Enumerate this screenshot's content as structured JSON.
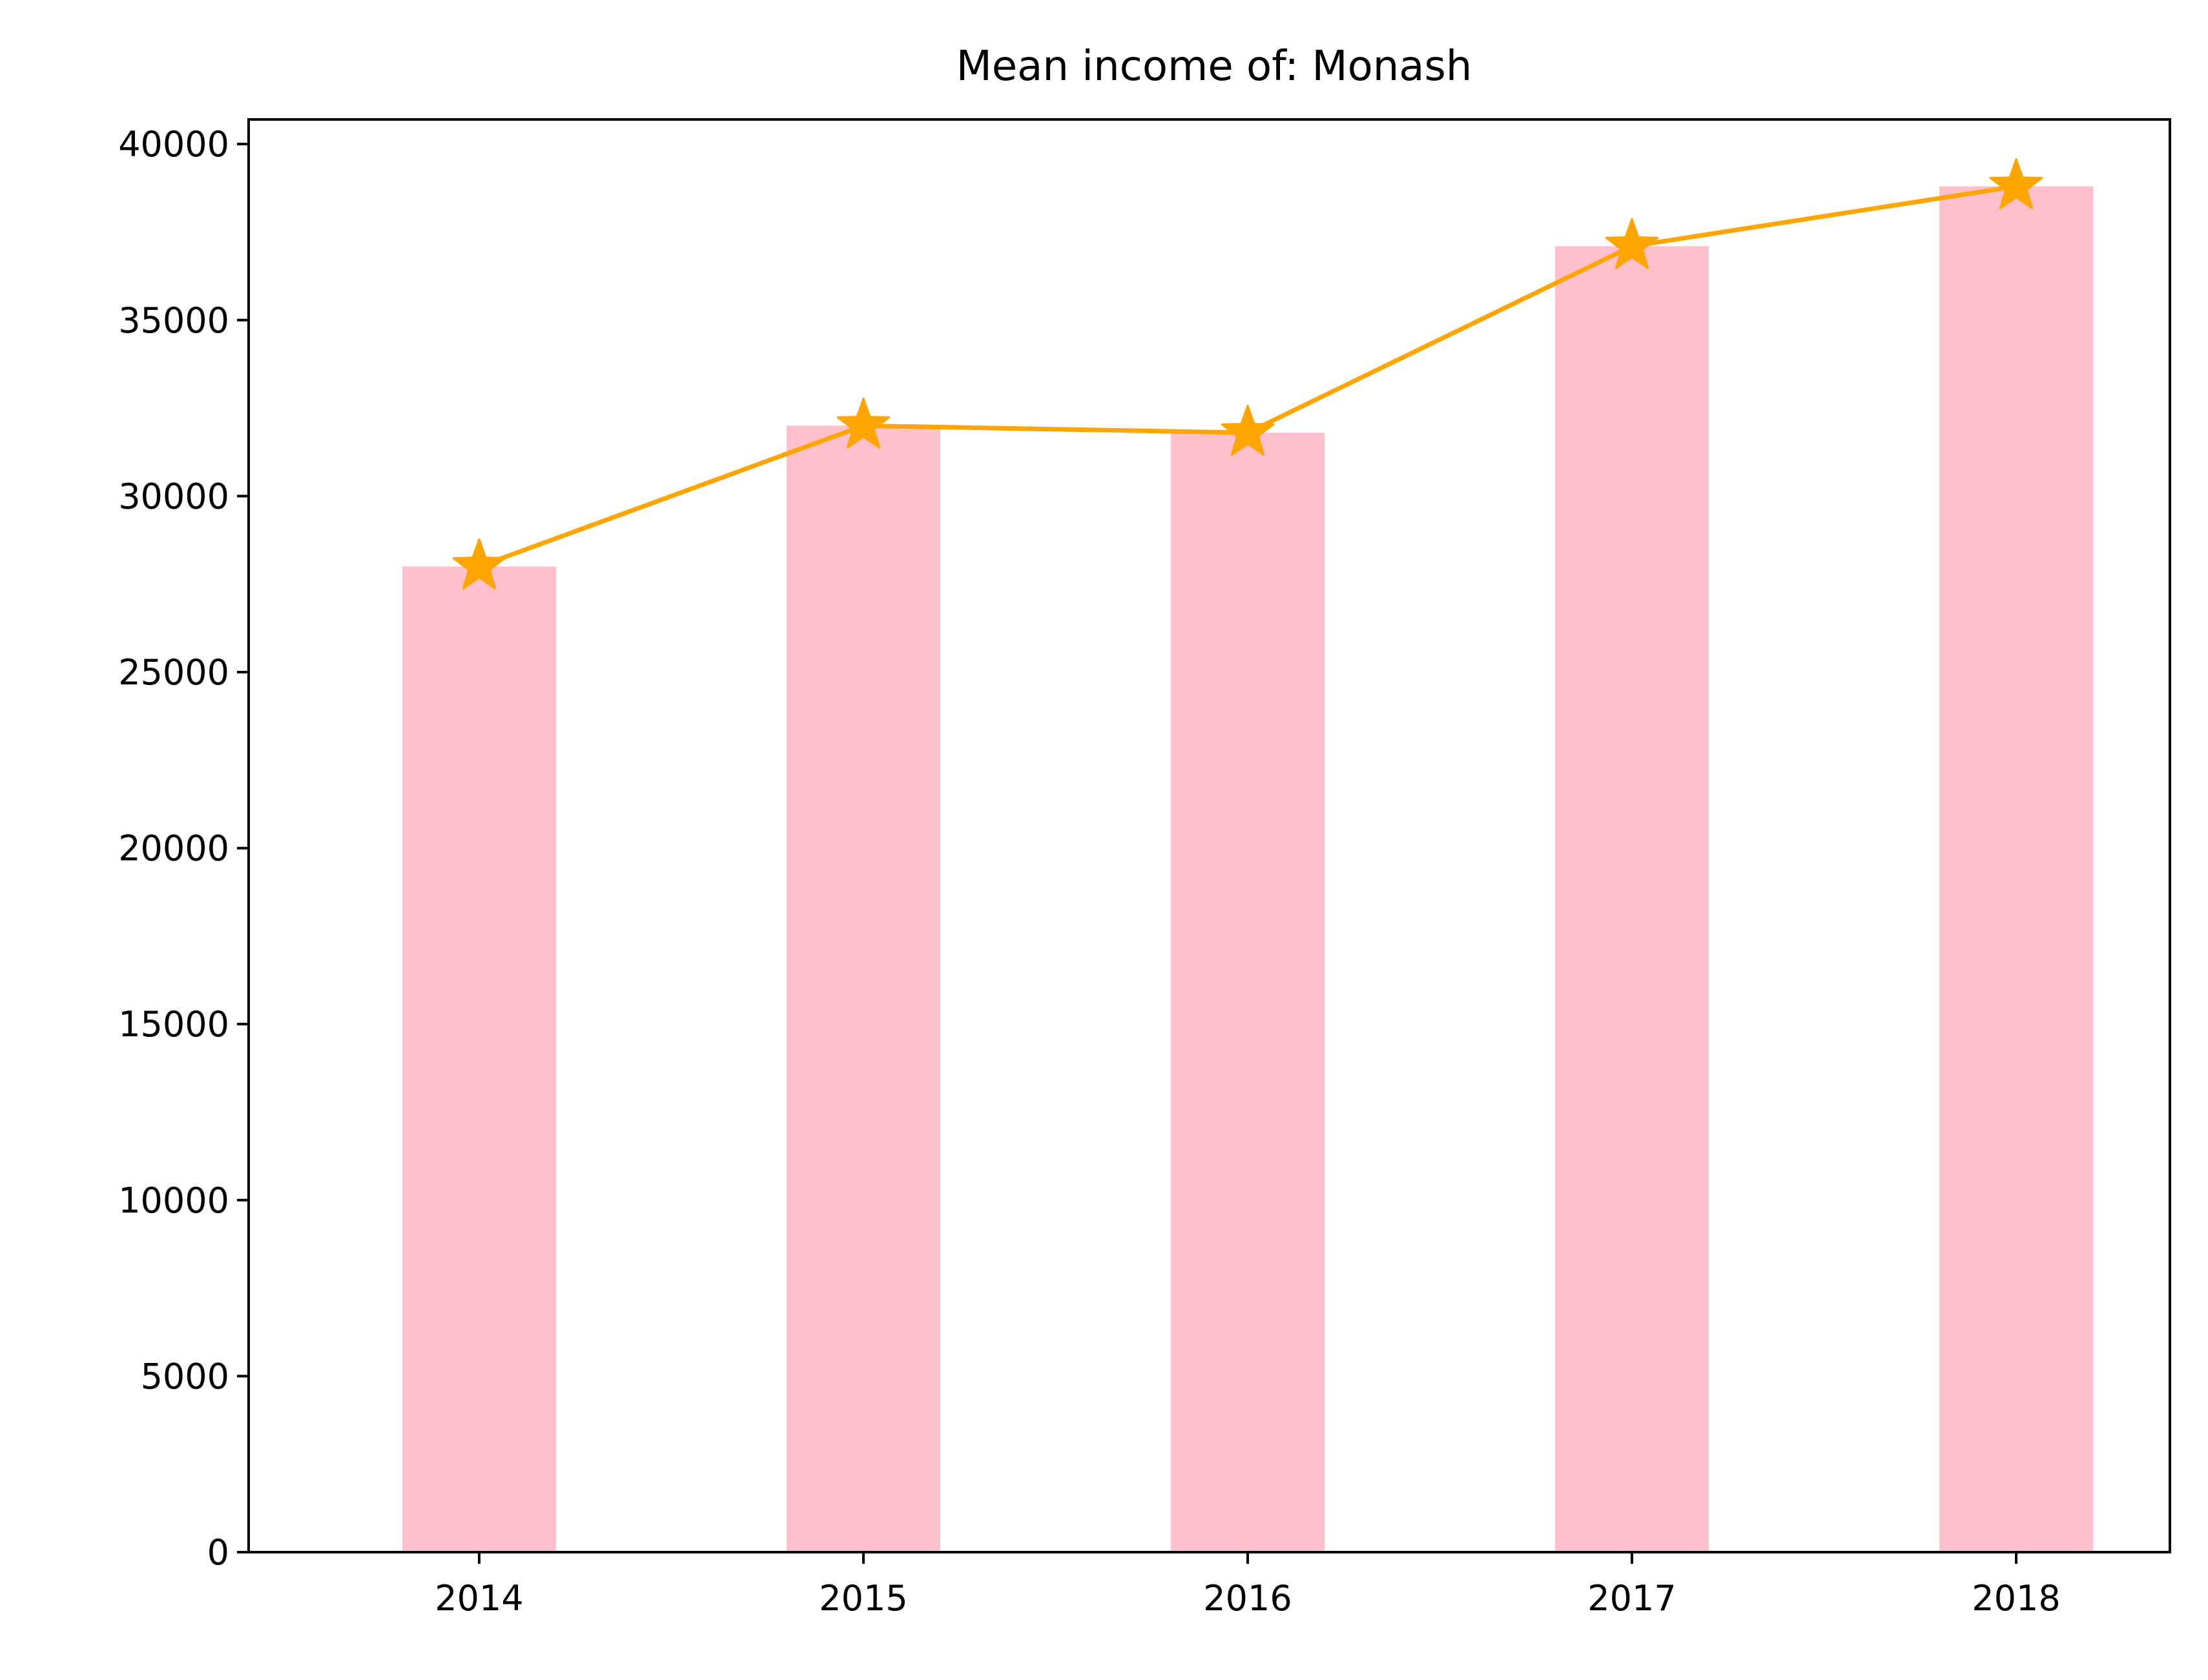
{
  "chart_data": {
    "type": "bar",
    "title": "Mean income of: Monash",
    "xlabel": "",
    "ylabel": "",
    "categories": [
      "2014",
      "2015",
      "2016",
      "2017",
      "2018"
    ],
    "values": [
      28000,
      32000,
      31800,
      37100,
      38800
    ],
    "line_values": [
      28000,
      32000,
      31800,
      37100,
      38800
    ],
    "ylim": [
      0,
      40700
    ],
    "yticks": [
      0,
      5000,
      10000,
      15000,
      20000,
      25000,
      30000,
      35000,
      40000
    ],
    "grid": false,
    "legend": "none",
    "colors": {
      "bar": "#ffc0cb",
      "line": "#ffa500",
      "axis": "#000000"
    },
    "marker": "star-icon"
  }
}
